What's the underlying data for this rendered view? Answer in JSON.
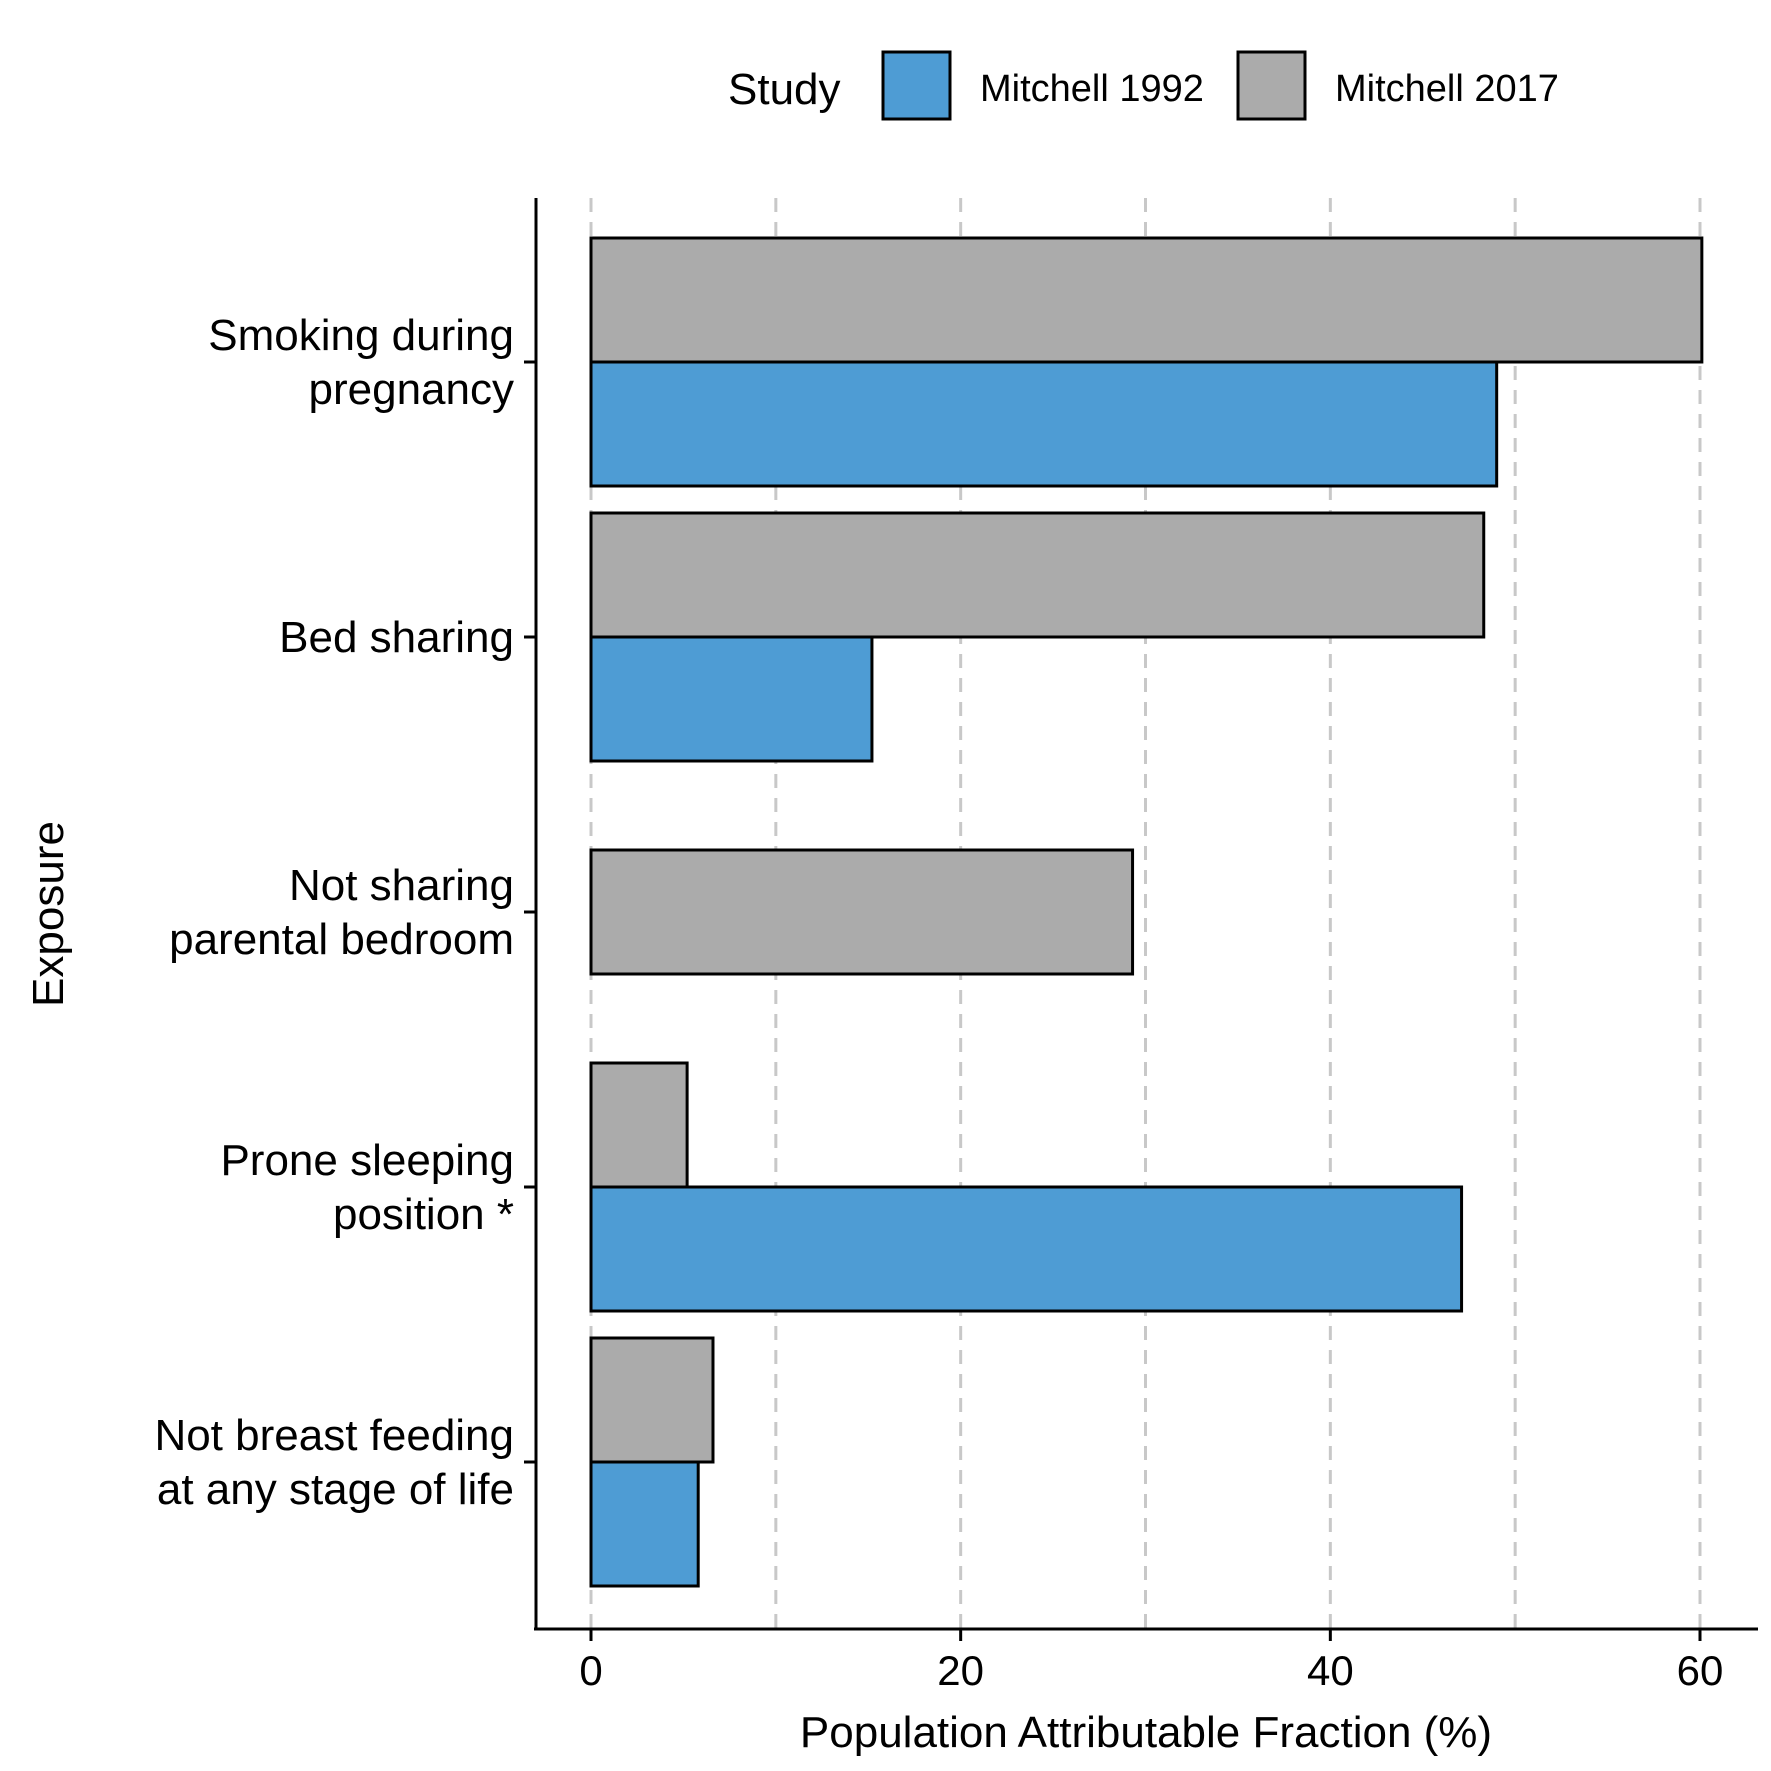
{
  "chart_data": {
    "type": "bar",
    "orientation": "horizontal",
    "title": "",
    "xlabel": "Population Attributable Fraction (%)",
    "ylabel": "Exposure",
    "xlim": [
      -3,
      63
    ],
    "x_ticks": [
      0,
      20,
      40,
      60
    ],
    "grid": "dashed vertical lines every 10",
    "legend": {
      "title": "Study",
      "placement": "top-center",
      "entries": [
        {
          "name": "Mitchell 1992",
          "color": "#4E9CD4"
        },
        {
          "name": "Mitchell 2017",
          "color": "#ABABAB"
        }
      ]
    },
    "categories": [
      {
        "lines": [
          "Smoking during",
          "pregnancy"
        ]
      },
      {
        "lines": [
          "Bed sharing"
        ]
      },
      {
        "lines": [
          "Not sharing",
          "parental bedroom"
        ]
      },
      {
        "lines": [
          "Prone sleeping",
          "position *"
        ]
      },
      {
        "lines": [
          "Not breast feeding",
          "at any stage of life"
        ]
      }
    ],
    "series": [
      {
        "name": "Mitchell 1992",
        "color": "#4E9CD4",
        "values": [
          49.0,
          15.2,
          null,
          47.1,
          5.8
        ]
      },
      {
        "name": "Mitchell 2017",
        "color": "#ABABAB",
        "values": [
          60.1,
          48.3,
          29.3,
          5.2,
          6.6
        ]
      }
    ]
  }
}
